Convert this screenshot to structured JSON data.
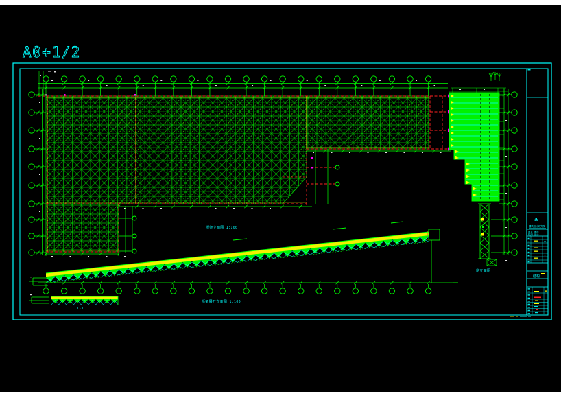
{
  "page": {
    "title": "A0+1/2"
  },
  "colors": {
    "background": "#000000",
    "frame": "#00ffff",
    "structure": "#00ff00",
    "joint_line": "#ffff00",
    "construction_line": "#ff2222",
    "marker": "#ff00ff",
    "dimension_text": "#ffffff",
    "paper_margin": "#ffffff"
  },
  "annotations": {
    "main_elevation_label": "桁架立面图 1:100",
    "bottom_elevation_label": "桁架展开立面图 1:100",
    "side_elevation_label": "侧立面图",
    "section_label": "1-1"
  },
  "title_block": {
    "logo_glyph": "♣",
    "company_line": "建筑设计研究院",
    "info_line1": "审定 审核",
    "info_line2": "校对 设计",
    "stamp_label": "结构"
  }
}
